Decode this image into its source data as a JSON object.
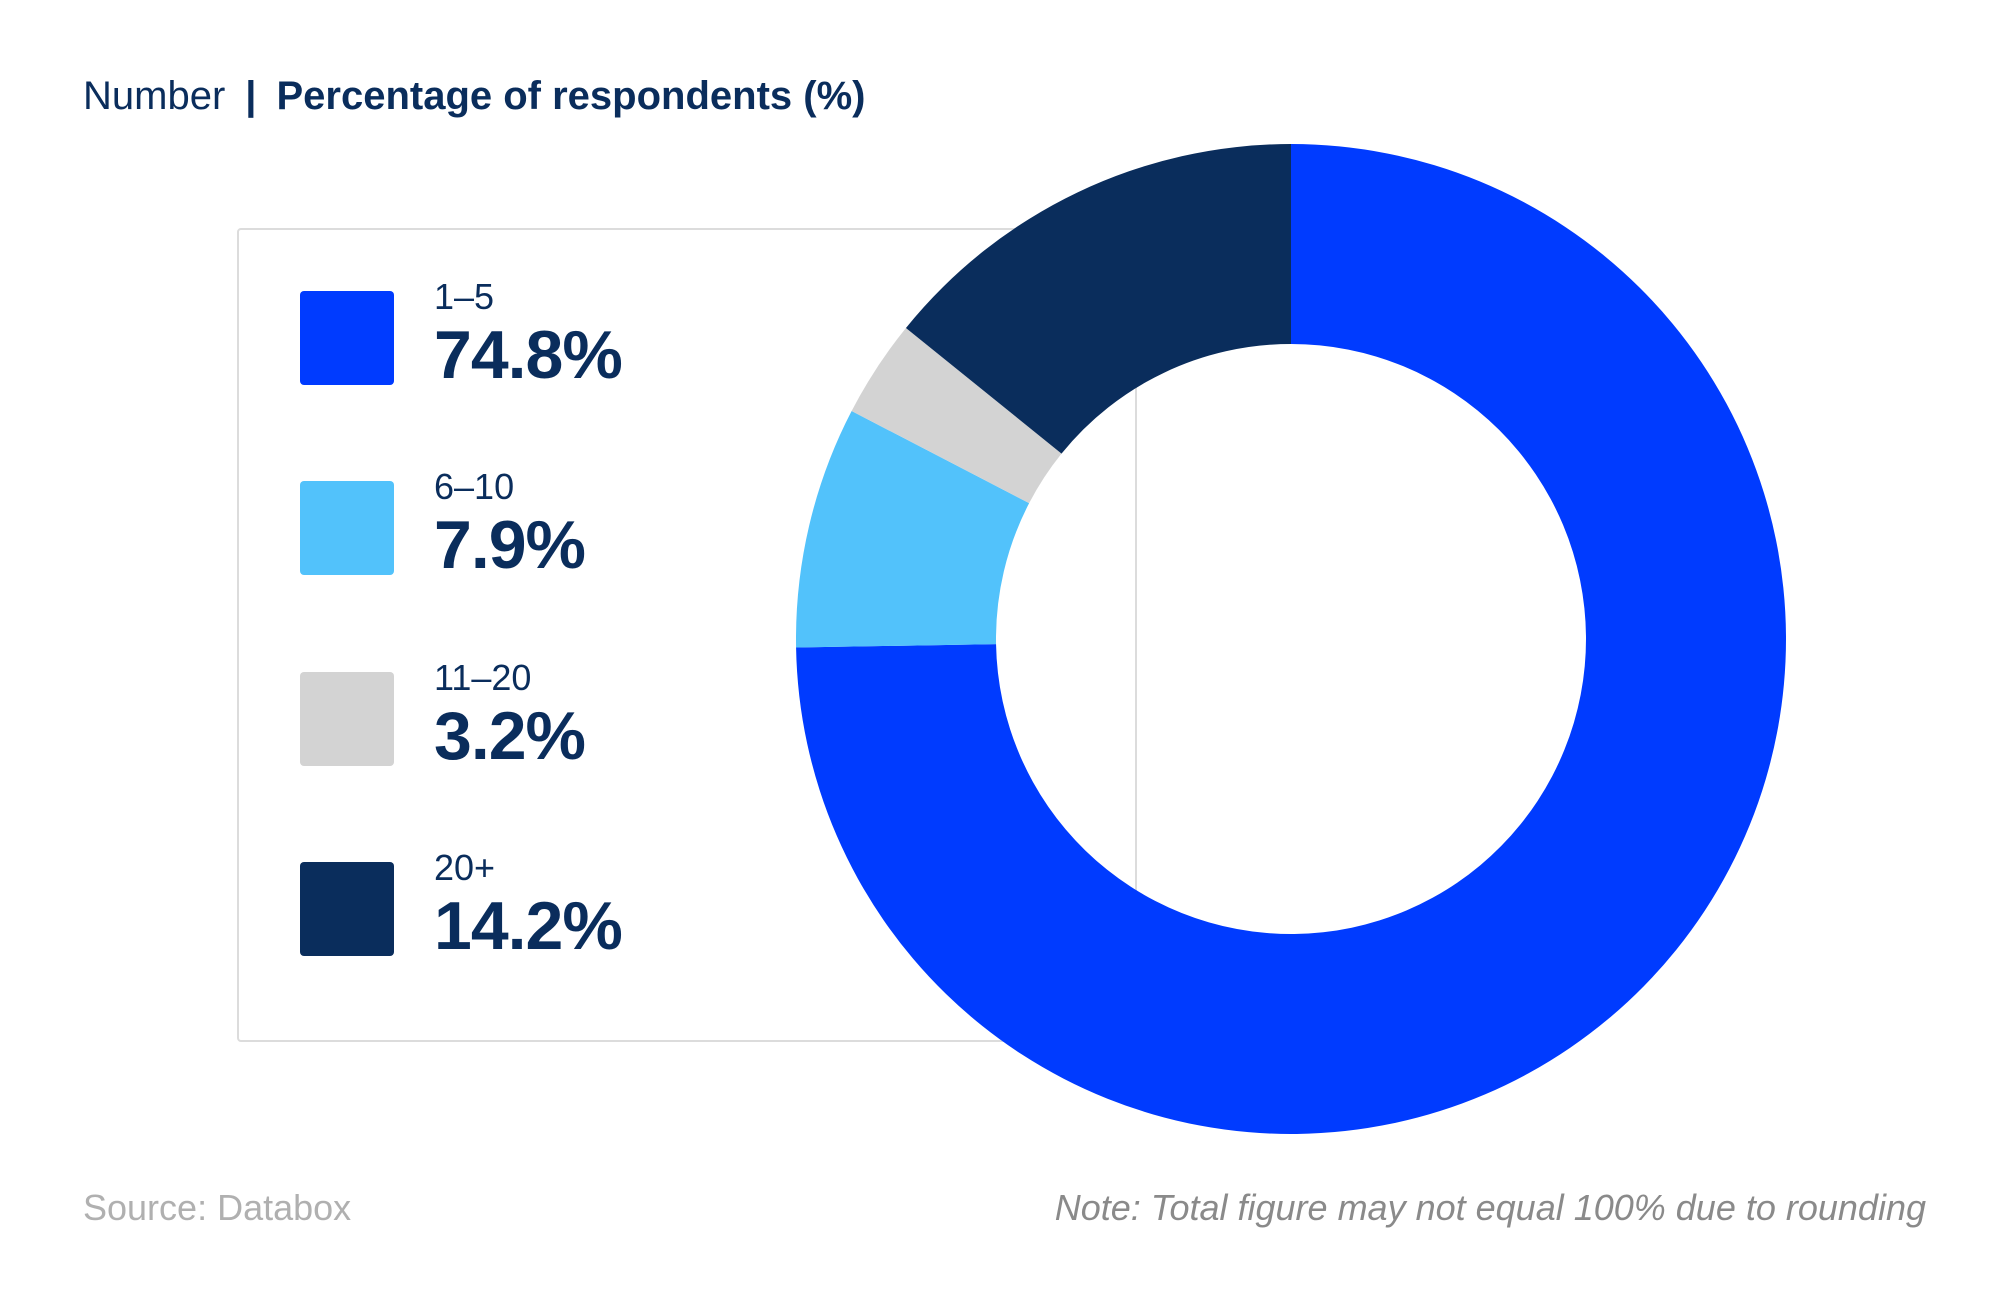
{
  "header": {
    "label": "Number",
    "separator": "|",
    "metric": "Percentage of respondents (%)"
  },
  "chart_data": {
    "type": "pie",
    "variant": "donut",
    "title": "Percentage of respondents (%)",
    "categories": [
      "1–5",
      "6–10",
      "11–20",
      "20+"
    ],
    "values": [
      74.8,
      7.9,
      3.2,
      14.2
    ],
    "value_labels": [
      "74.8%",
      "7.9%",
      "3.2%",
      "14.2%"
    ],
    "colors": [
      "#003bff",
      "#52c2fb",
      "#d3d3d3",
      "#0a2d5c"
    ],
    "legend_position": "left"
  },
  "legend": {
    "items": [
      {
        "label": "1–5",
        "value": "74.8%",
        "color": "#003bff"
      },
      {
        "label": "6–10",
        "value": "7.9%",
        "color": "#52c2fb"
      },
      {
        "label": "11–20",
        "value": "3.2%",
        "color": "#d3d3d3"
      },
      {
        "label": "20+",
        "value": "14.2%",
        "color": "#0a2d5c"
      }
    ]
  },
  "footer": {
    "source": "Source: Databox",
    "note": "Note: Total figure may not equal 100% due to rounding"
  }
}
